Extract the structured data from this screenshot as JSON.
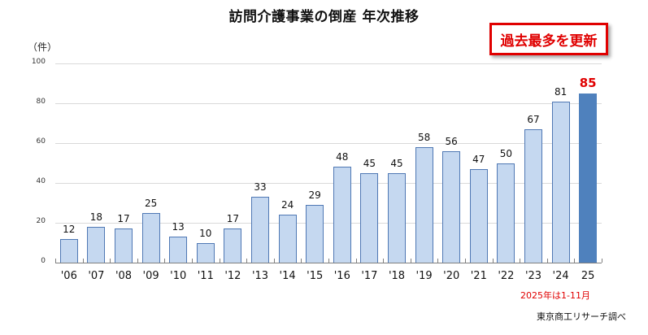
{
  "title": "訪問介護事業の倒産 年次推移",
  "callout": "過去最多を更新",
  "unit_label": "（件）",
  "note": "2025年は1-11月",
  "source": "東京商工リサーチ調べ",
  "colors": {
    "bar": "#c5d8f0",
    "bar_border": "#4f78b4",
    "highlight_bar": "#4f81bd",
    "highlight_text": "#e00000"
  },
  "chart_data": {
    "type": "bar",
    "title": "訪問介護事業の倒産 年次推移",
    "xlabel": "",
    "ylabel": "（件）",
    "ylim": [
      0,
      100
    ],
    "yticks": [
      0,
      20,
      40,
      60,
      80,
      100
    ],
    "grid": true,
    "categories": [
      "'06",
      "'07",
      "'08",
      "'09",
      "'10",
      "'11",
      "'12",
      "'13",
      "'14",
      "'15",
      "'16",
      "'17",
      "'18",
      "'19",
      "'20",
      "'21",
      "'22",
      "'23",
      "'24",
      "25"
    ],
    "values": [
      12,
      18,
      17,
      25,
      13,
      10,
      17,
      33,
      24,
      29,
      48,
      45,
      45,
      58,
      56,
      47,
      50,
      67,
      81,
      85
    ],
    "highlight_index": 19,
    "annotations": [
      "過去最多を更新",
      "2025年は1-11月",
      "東京商工リサーチ調べ"
    ]
  }
}
